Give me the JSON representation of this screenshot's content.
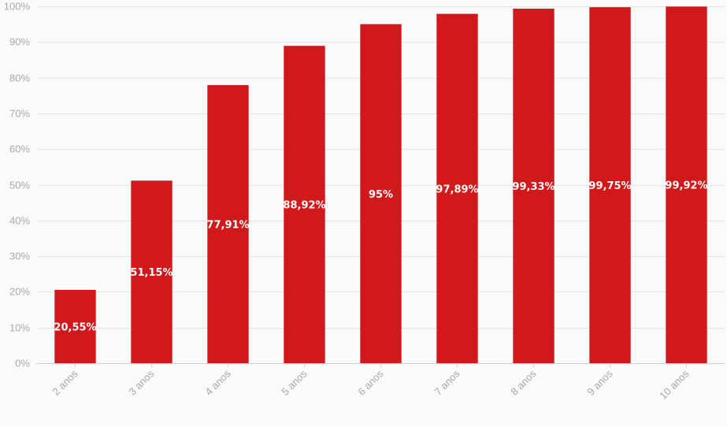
{
  "chart_data": {
    "type": "bar",
    "title": "",
    "xlabel": "",
    "ylabel": "",
    "categories": [
      "2 anos",
      "3 anos",
      "4 anos",
      "5 anos",
      "6 anos",
      "7 anos",
      "8 anos",
      "9 anos",
      "10 anos"
    ],
    "values": [
      20.55,
      51.15,
      77.91,
      88.92,
      95,
      97.89,
      99.33,
      99.75,
      99.92
    ],
    "data_labels": [
      "20,55%",
      "51,15%",
      "77,91%",
      "88,92%",
      "95%",
      "97,89%",
      "99,33%",
      "99,75%",
      "99,92%"
    ],
    "ylim": [
      0,
      100
    ],
    "y_ticks": [
      0,
      10,
      20,
      30,
      40,
      50,
      60,
      70,
      80,
      90,
      100
    ],
    "y_tick_labels": [
      "0%",
      "10%",
      "20%",
      "30%",
      "40%",
      "50%",
      "60%",
      "70%",
      "80%",
      "90%",
      "100%"
    ],
    "grid": true,
    "legend": "none",
    "x_label_rotation": "45 degrees",
    "colors": {
      "bar": "#d0191a",
      "background": "#fafafa",
      "grid": "#e4e4e4",
      "tick_text": "#a9a9a9",
      "data_label": "#ffffff"
    }
  }
}
